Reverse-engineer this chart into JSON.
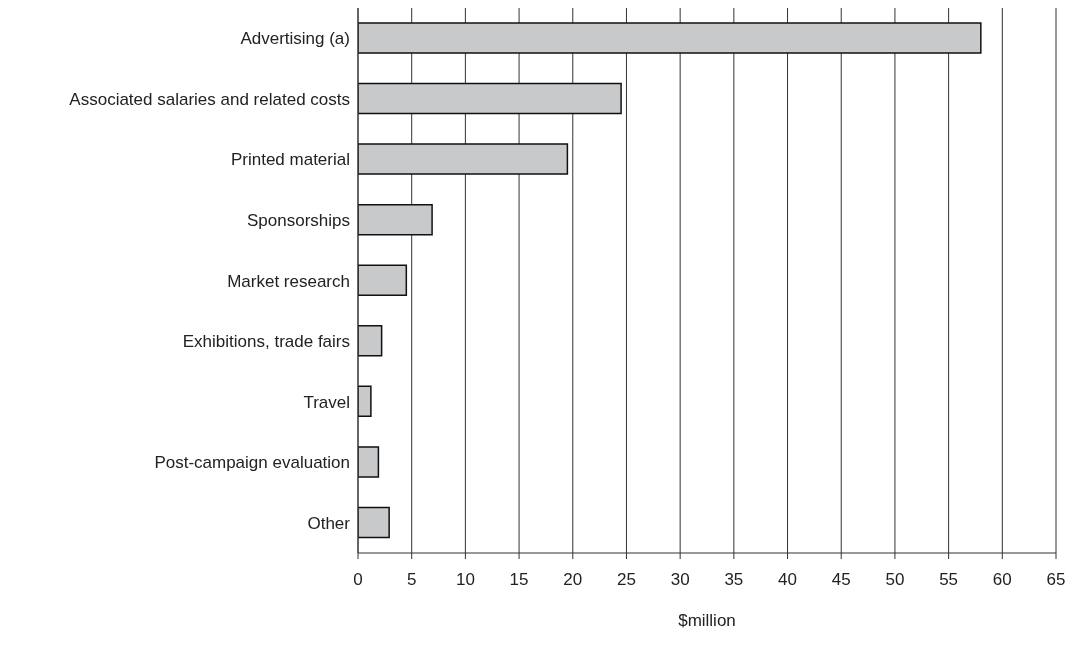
{
  "chart_data": {
    "type": "bar",
    "orientation": "horizontal",
    "xlabel": "$million",
    "categories": [
      "Advertising (a)",
      "Associated salaries and related costs",
      "Printed material",
      "Sponsorships",
      "Market research",
      "Exhibitions, trade fairs",
      "Travel",
      "Post-campaign evaluation",
      "Other"
    ],
    "values": [
      58,
      24.5,
      19.5,
      6.9,
      4.5,
      2.2,
      1.2,
      1.9,
      2.9
    ],
    "color": "#c8c9cb",
    "xlim": [
      0,
      65
    ],
    "xticks": [
      0,
      5,
      10,
      15,
      20,
      25,
      30,
      35,
      40,
      45,
      50,
      55,
      60,
      65
    ],
    "grid": "x",
    "legend": false
  }
}
